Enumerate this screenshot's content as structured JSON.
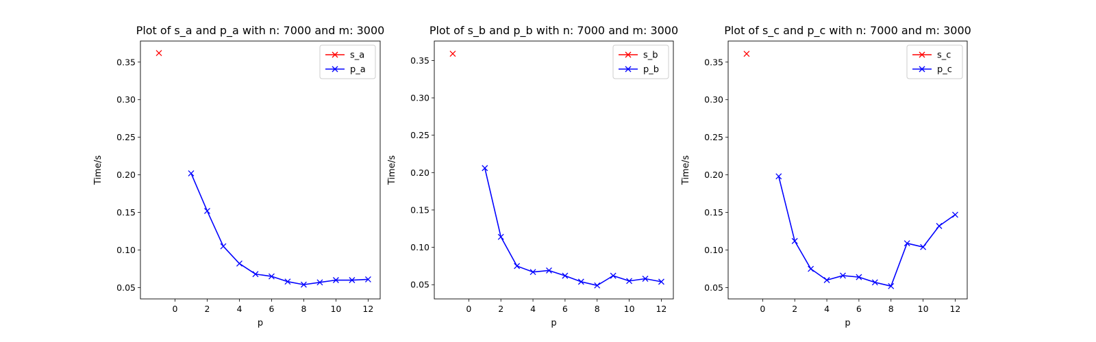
{
  "chart_data": [
    {
      "type": "line",
      "title": "Plot of s_a and p_a with n: 7000 and m: 3000",
      "xlabel": "p",
      "ylabel": "Time/s",
      "xlim": [
        -2.15,
        12.75
      ],
      "ylim": [
        0.035,
        0.378
      ],
      "xticks": [
        0,
        2,
        4,
        6,
        8,
        10,
        12
      ],
      "yticks": [
        0.05,
        0.1,
        0.15,
        0.2,
        0.25,
        0.3,
        0.35
      ],
      "legend_position": "top-right",
      "grid": false,
      "series": [
        {
          "name": "s_a",
          "color": "#ff0000",
          "marker": "x",
          "line": false,
          "x": [
            -1
          ],
          "y": [
            0.362
          ]
        },
        {
          "name": "p_a",
          "color": "#0000ff",
          "marker": "x",
          "line": true,
          "x": [
            1,
            2,
            3,
            4,
            5,
            6,
            7,
            8,
            9,
            10,
            11,
            12
          ],
          "y": [
            0.202,
            0.152,
            0.105,
            0.082,
            0.068,
            0.065,
            0.058,
            0.054,
            0.057,
            0.06,
            0.06,
            0.061
          ]
        }
      ]
    },
    {
      "type": "line",
      "title": "Plot of s_b and p_b with n: 7000 and m: 3000",
      "xlabel": "p",
      "ylabel": "Time/s",
      "xlim": [
        -2.15,
        12.75
      ],
      "ylim": [
        0.031,
        0.376
      ],
      "xticks": [
        0,
        2,
        4,
        6,
        8,
        10,
        12
      ],
      "yticks": [
        0.05,
        0.1,
        0.15,
        0.2,
        0.25,
        0.3,
        0.35
      ],
      "legend_position": "top-right",
      "grid": false,
      "series": [
        {
          "name": "s_b",
          "color": "#ff0000",
          "marker": "x",
          "line": false,
          "x": [
            -1
          ],
          "y": [
            0.359
          ]
        },
        {
          "name": "p_b",
          "color": "#0000ff",
          "marker": "x",
          "line": true,
          "x": [
            1,
            2,
            3,
            4,
            5,
            6,
            7,
            8,
            9,
            10,
            11,
            12
          ],
          "y": [
            0.206,
            0.114,
            0.075,
            0.067,
            0.069,
            0.062,
            0.054,
            0.049,
            0.062,
            0.055,
            0.058,
            0.054
          ]
        }
      ]
    },
    {
      "type": "line",
      "title": "Plot of s_c and p_c with n: 7000 and m: 3000",
      "xlabel": "p",
      "ylabel": "Time/s",
      "xlim": [
        -2.15,
        12.75
      ],
      "ylim": [
        0.035,
        0.378
      ],
      "xticks": [
        0,
        2,
        4,
        6,
        8,
        10,
        12
      ],
      "yticks": [
        0.05,
        0.1,
        0.15,
        0.2,
        0.25,
        0.3,
        0.35
      ],
      "legend_position": "top-right",
      "grid": false,
      "series": [
        {
          "name": "s_c",
          "color": "#ff0000",
          "marker": "x",
          "line": false,
          "x": [
            -1
          ],
          "y": [
            0.361
          ]
        },
        {
          "name": "p_c",
          "color": "#0000ff",
          "marker": "x",
          "line": true,
          "x": [
            1,
            2,
            3,
            4,
            5,
            6,
            7,
            8,
            9,
            10,
            11,
            12
          ],
          "y": [
            0.198,
            0.112,
            0.075,
            0.06,
            0.066,
            0.064,
            0.057,
            0.052,
            0.109,
            0.104,
            0.132,
            0.147
          ]
        }
      ]
    }
  ]
}
